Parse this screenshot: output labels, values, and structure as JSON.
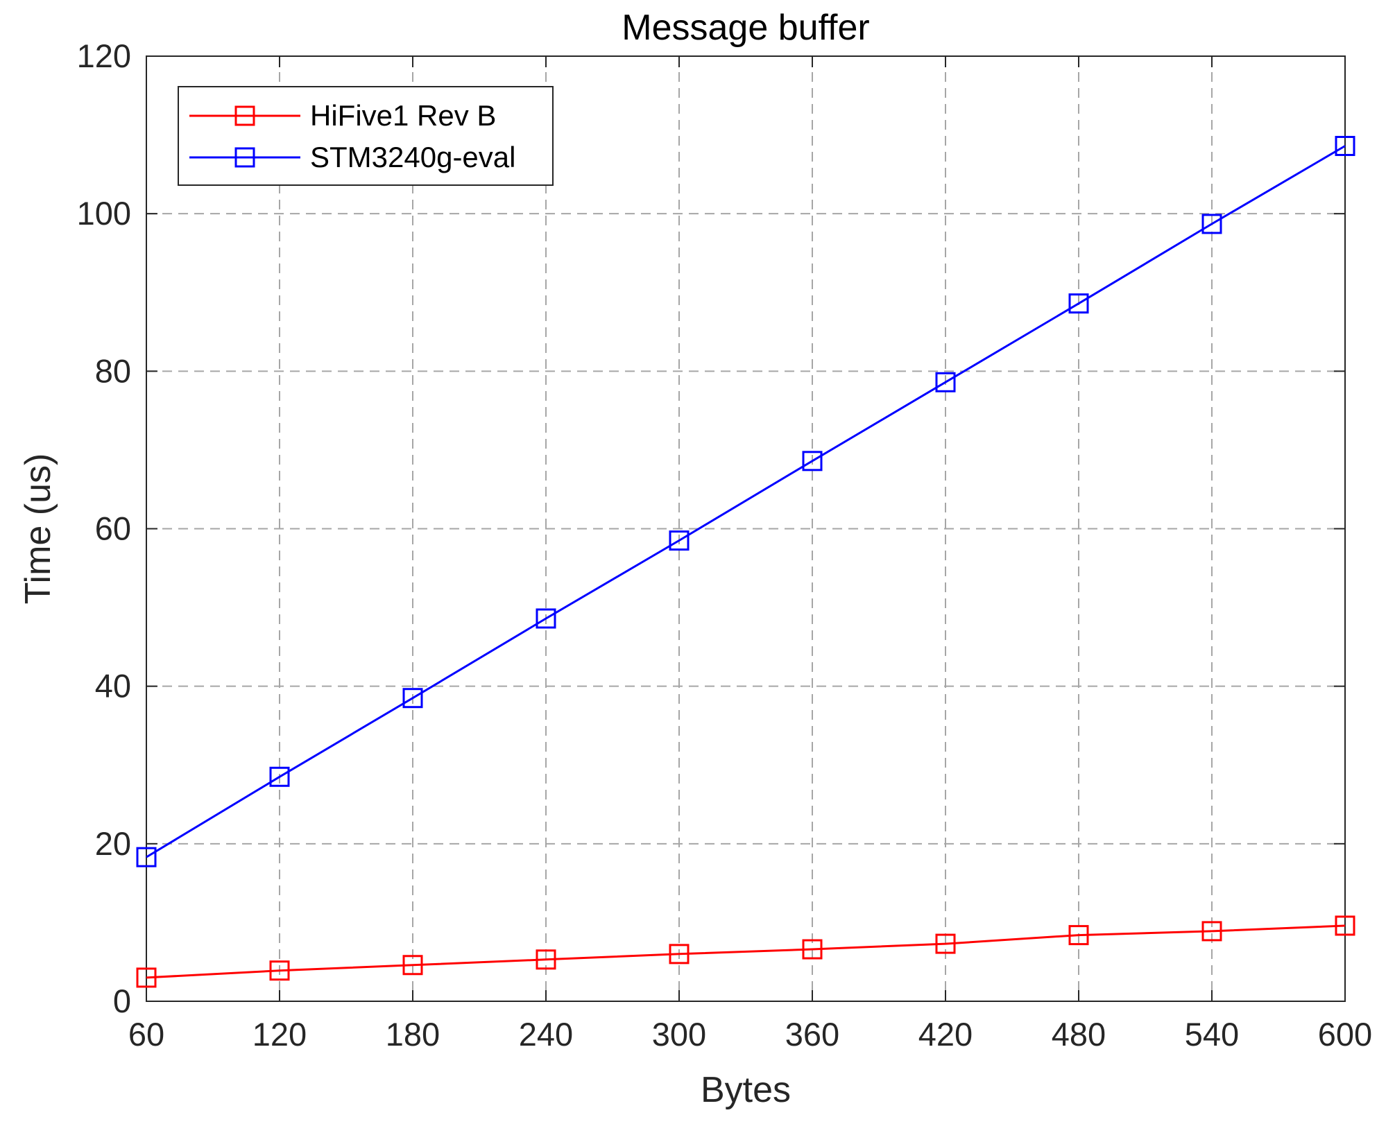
{
  "chart_data": {
    "type": "line",
    "title": "Message buffer",
    "xlabel": "Bytes",
    "ylabel": "Time (us)",
    "x": [
      60,
      120,
      180,
      240,
      300,
      360,
      420,
      480,
      540,
      600
    ],
    "xlim": [
      60,
      600
    ],
    "ylim": [
      0,
      120
    ],
    "xticks": [
      60,
      120,
      180,
      240,
      300,
      360,
      420,
      480,
      540,
      600
    ],
    "yticks": [
      0,
      20,
      40,
      60,
      80,
      100,
      120
    ],
    "grid": true,
    "legend_position": "top-left",
    "marker": "square",
    "series": [
      {
        "name": "HiFive1 Rev B",
        "color": "#ff0000",
        "values": [
          3.0,
          3.9,
          4.6,
          5.3,
          6.0,
          6.6,
          7.3,
          8.4,
          8.9,
          9.6
        ]
      },
      {
        "name": "STM3240g-eval",
        "color": "#0000ff",
        "values": [
          18.3,
          28.5,
          38.5,
          48.6,
          58.5,
          68.6,
          78.6,
          88.6,
          98.7,
          108.6
        ]
      }
    ]
  }
}
